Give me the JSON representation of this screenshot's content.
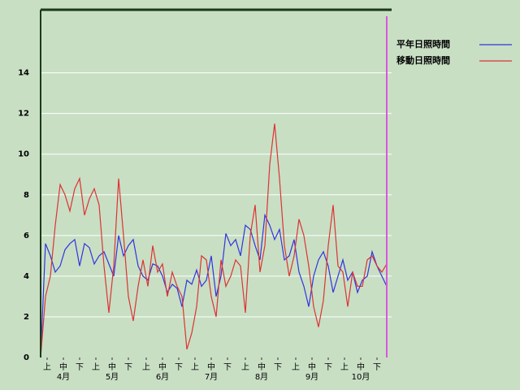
{
  "chart_data": {
    "type": "line",
    "x": [
      0,
      3,
      6,
      9,
      12,
      15,
      18,
      21,
      24,
      27,
      30,
      33,
      36,
      39,
      42,
      45,
      48,
      51,
      54,
      57,
      60,
      63,
      66,
      69,
      72,
      75,
      78,
      81,
      84,
      87,
      90,
      93,
      96,
      99,
      102,
      105,
      108,
      111,
      114,
      117,
      120,
      123,
      126,
      129,
      132,
      135,
      138,
      141,
      144,
      147,
      150,
      153,
      156,
      159,
      162,
      165,
      168,
      171,
      174,
      177,
      180,
      183,
      186,
      189,
      192,
      195,
      198,
      201,
      204,
      207,
      210,
      213
    ],
    "series": [
      {
        "name": "平年日照時間",
        "color": "#3333dd",
        "values": [
          0,
          5.6,
          5.0,
          4.2,
          4.5,
          5.3,
          5.6,
          5.8,
          4.5,
          5.6,
          5.4,
          4.6,
          5.0,
          5.2,
          4.6,
          4.0,
          6.0,
          5.0,
          5.5,
          5.8,
          4.5,
          4.0,
          3.8,
          4.6,
          4.5,
          4.0,
          3.2,
          3.6,
          3.4,
          2.5,
          3.8,
          3.6,
          4.3,
          3.5,
          3.8,
          5.0,
          3.0,
          4.0,
          6.1,
          5.5,
          5.8,
          5.0,
          6.5,
          6.3,
          5.5,
          4.8,
          7.0,
          6.5,
          5.8,
          6.3,
          4.8,
          5.0,
          5.8,
          4.2,
          3.5,
          2.5,
          4.0,
          4.8,
          5.2,
          4.5,
          3.2,
          4.0,
          4.8,
          3.8,
          4.2,
          3.2,
          3.8,
          4.0,
          5.2,
          4.5,
          4.0,
          3.5
        ]
      },
      {
        "name": "移動日照時間",
        "color": "#dd3333",
        "values": [
          0,
          3.0,
          4.0,
          6.5,
          8.5,
          8.0,
          7.2,
          8.3,
          8.8,
          7.0,
          7.8,
          8.3,
          7.5,
          4.5,
          2.2,
          4.5,
          8.8,
          6.0,
          3.0,
          1.8,
          3.5,
          4.8,
          3.5,
          5.5,
          4.2,
          4.6,
          3.0,
          4.2,
          3.5,
          3.0,
          0.4,
          1.2,
          2.5,
          5.0,
          4.8,
          3.0,
          2.0,
          4.8,
          3.5,
          4.0,
          4.8,
          4.5,
          2.2,
          6.0,
          7.5,
          4.2,
          5.5,
          9.5,
          11.5,
          8.8,
          5.5,
          4.0,
          5.0,
          6.8,
          6.0,
          4.5,
          2.5,
          1.5,
          2.8,
          5.5,
          7.5,
          4.5,
          4.2,
          2.5,
          4.2,
          3.5,
          3.5,
          4.8,
          5.0,
          4.5,
          4.2,
          4.6
        ]
      }
    ],
    "xlim": [
      0,
      214
    ],
    "xticks": [
      {
        "value": 4,
        "label": "上"
      },
      {
        "value": 14,
        "label": "中"
      },
      {
        "value": 24,
        "label": "下"
      },
      {
        "value": 34,
        "label": "上"
      },
      {
        "value": 44,
        "label": "中"
      },
      {
        "value": 54,
        "label": "下"
      },
      {
        "value": 65,
        "label": "上"
      },
      {
        "value": 75,
        "label": "中"
      },
      {
        "value": 85,
        "label": "下"
      },
      {
        "value": 95,
        "label": "上"
      },
      {
        "value": 105,
        "label": "中"
      },
      {
        "value": 115,
        "label": "下"
      },
      {
        "value": 126,
        "label": "上"
      },
      {
        "value": 136,
        "label": "中"
      },
      {
        "value": 146,
        "label": "下"
      },
      {
        "value": 157,
        "label": "上"
      },
      {
        "value": 167,
        "label": "中"
      },
      {
        "value": 177,
        "label": "下"
      },
      {
        "value": 187,
        "label": "上"
      },
      {
        "value": 197,
        "label": "中"
      },
      {
        "value": 207,
        "label": "下"
      }
    ],
    "months": [
      {
        "value": 14,
        "label": "4月"
      },
      {
        "value": 44,
        "label": "5月"
      },
      {
        "value": 75,
        "label": "6月"
      },
      {
        "value": 105,
        "label": "7月"
      },
      {
        "value": 136,
        "label": "8月"
      },
      {
        "value": 167,
        "label": "9月"
      },
      {
        "value": 197,
        "label": "10月"
      }
    ],
    "ylim": [
      0,
      17.1
    ],
    "yticks": [
      0,
      2,
      4,
      6,
      8,
      10,
      12,
      14
    ],
    "grid": true,
    "current_line": {
      "x": 213,
      "color": "#dd55dd"
    }
  }
}
